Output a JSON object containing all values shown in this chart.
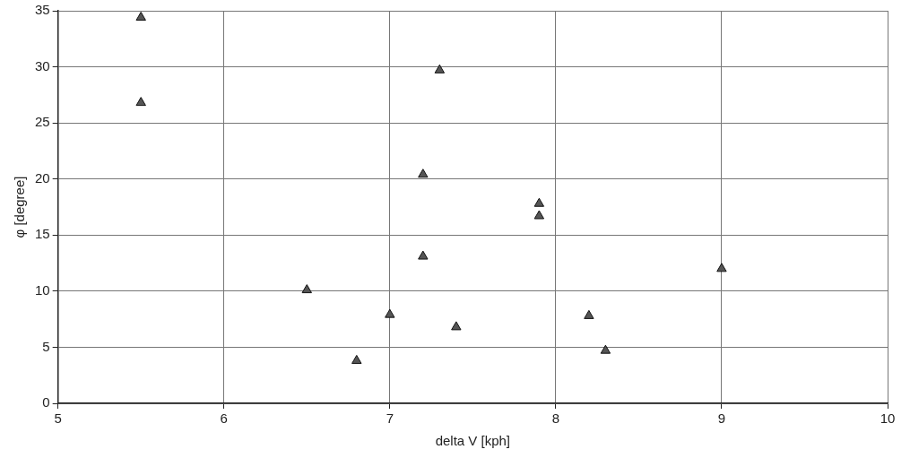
{
  "chart_data": {
    "type": "scatter",
    "xlabel": "delta V [kph]",
    "ylabel": "φ [degree]",
    "x": [
      5.5,
      5.5,
      7.3,
      7.2,
      7.9,
      7.9,
      7.2,
      9.0,
      6.5,
      7.0,
      7.4,
      8.2,
      8.3,
      6.8
    ],
    "values": [
      34.4,
      26.8,
      29.7,
      20.4,
      17.8,
      16.7,
      13.1,
      12.0,
      10.1,
      7.9,
      6.8,
      7.8,
      4.7,
      3.8
    ],
    "color": "#555555",
    "marker": "triangle",
    "grid": true,
    "legend": false,
    "xlim": [
      5,
      10
    ],
    "xticks": [
      5,
      6,
      7,
      8,
      9,
      10
    ],
    "ylim": [
      0,
      35
    ],
    "yticks": [
      0,
      5,
      10,
      15,
      20,
      25,
      30,
      35
    ]
  }
}
